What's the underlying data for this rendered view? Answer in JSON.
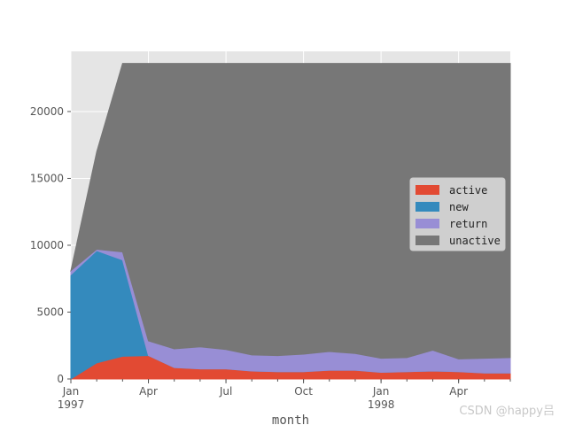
{
  "chart_data": {
    "type": "area",
    "stacked": true,
    "x": [
      "1997-01",
      "1997-02",
      "1997-03",
      "1997-04",
      "1997-05",
      "1997-06",
      "1997-07",
      "1997-08",
      "1997-09",
      "1997-10",
      "1997-11",
      "1997-12",
      "1998-01",
      "1998-02",
      "1998-03",
      "1998-04",
      "1998-05",
      "1998-06"
    ],
    "xlabel": "month",
    "x_ticks": [
      {
        "at": "1997-01",
        "label": "Jan",
        "sublabel": "1997"
      },
      {
        "at": "1997-04",
        "label": "Apr",
        "sublabel": ""
      },
      {
        "at": "1997-07",
        "label": "Jul",
        "sublabel": ""
      },
      {
        "at": "1997-10",
        "label": "Oct",
        "sublabel": ""
      },
      {
        "at": "1998-01",
        "label": "Jan",
        "sublabel": "1998"
      },
      {
        "at": "1998-04",
        "label": "Apr",
        "sublabel": ""
      }
    ],
    "ylim": [
      0,
      24500
    ],
    "y_ticks": [
      0,
      5000,
      10000,
      15000,
      20000
    ],
    "grid": true,
    "legend": "center-right",
    "series": [
      {
        "name": "active",
        "color": "#e24a33",
        "values": [
          0,
          1200,
          1700,
          1750,
          850,
          750,
          750,
          600,
          550,
          550,
          650,
          650,
          500,
          550,
          600,
          550,
          450,
          450
        ]
      },
      {
        "name": "new",
        "color": "#348abd",
        "values": [
          7800,
          8400,
          7200,
          0,
          0,
          0,
          0,
          0,
          0,
          0,
          0,
          0,
          0,
          0,
          0,
          0,
          0,
          0
        ]
      },
      {
        "name": "return",
        "color": "#988ed5",
        "values": [
          300,
          100,
          600,
          1100,
          1400,
          1650,
          1450,
          1200,
          1200,
          1300,
          1400,
          1250,
          1050,
          1050,
          1550,
          950,
          1100,
          1150
        ]
      },
      {
        "name": "unactive",
        "color": "#777777",
        "values": [
          0,
          7300,
          14100,
          20750,
          21350,
          21200,
          21400,
          21800,
          21850,
          21750,
          21550,
          21700,
          22050,
          22000,
          21450,
          22100,
          22050,
          22000
        ]
      }
    ]
  },
  "watermark": "CSDN @happy吕"
}
